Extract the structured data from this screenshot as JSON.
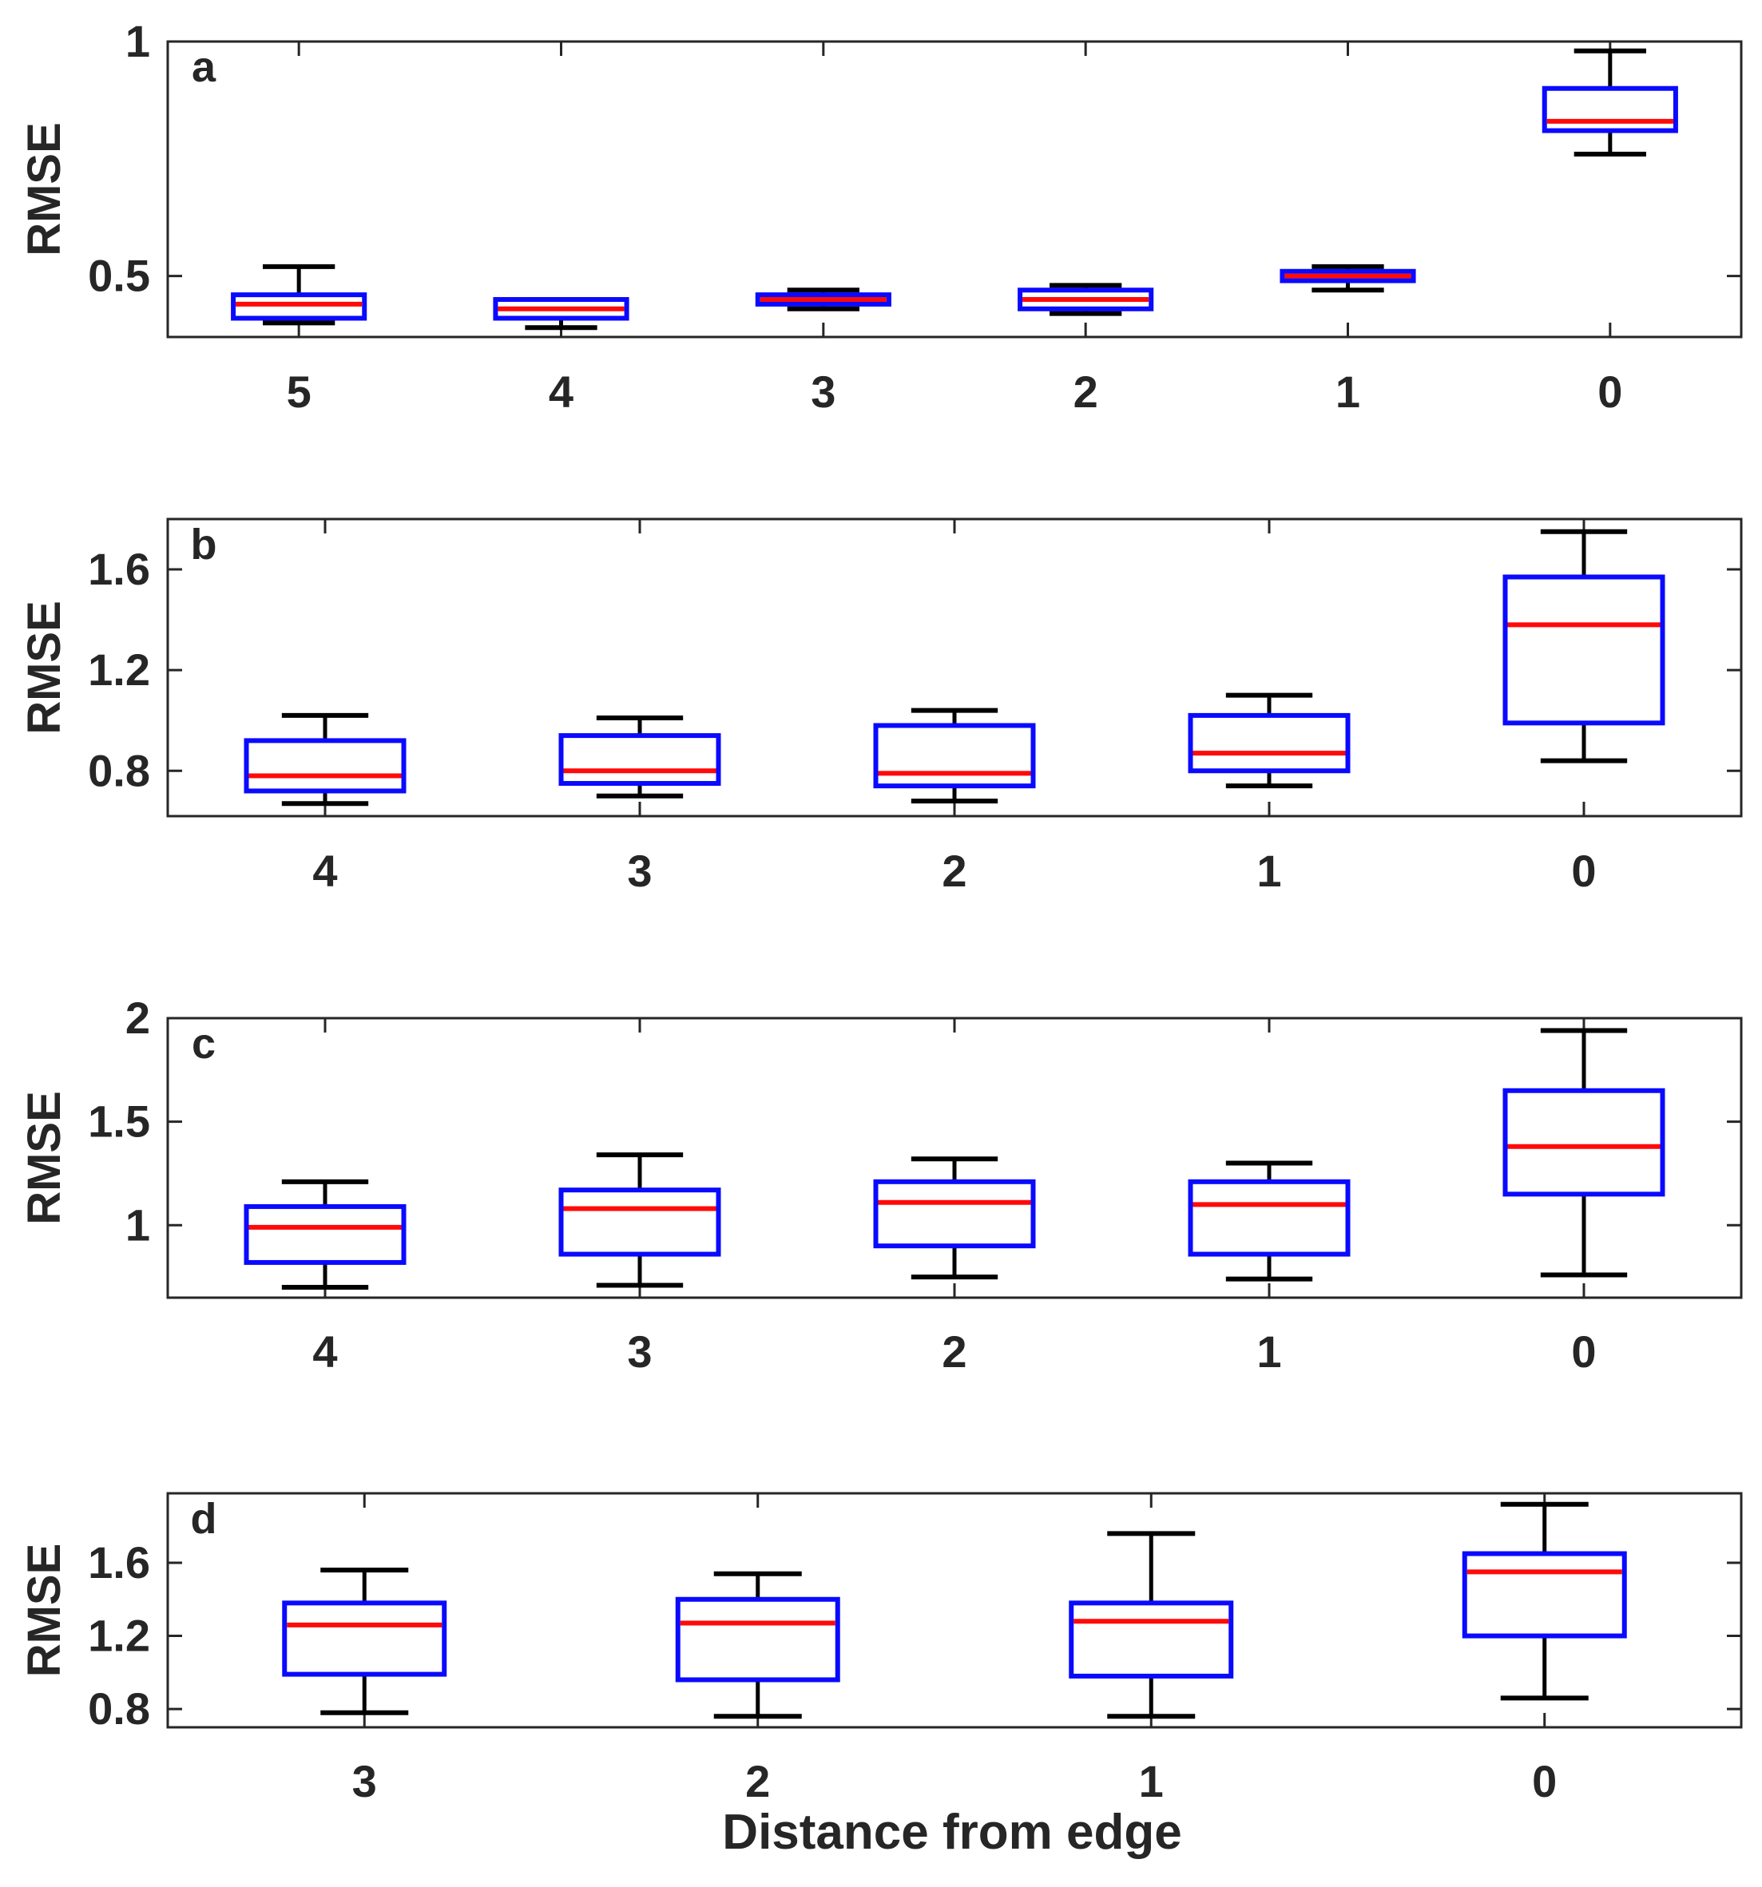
{
  "figure": {
    "xlabel": "Distance from edge",
    "colors": {
      "box": "#0a0aff",
      "median": "#ff0a0a",
      "whisker": "#000000",
      "axis": "#262626"
    }
  },
  "chart_data": [
    {
      "type": "box",
      "panel_label": "a",
      "ylabel": "RMSE",
      "ylim": [
        0.37,
        1.0
      ],
      "yticks": [
        0.5,
        1
      ],
      "ytick_labels": [
        "0.5",
        "1"
      ],
      "categories": [
        "5",
        "4",
        "3",
        "2",
        "1",
        "0"
      ],
      "boxes": [
        {
          "lower_whisker": 0.4,
          "q1": 0.41,
          "median": 0.44,
          "q3": 0.46,
          "upper_whisker": 0.52
        },
        {
          "lower_whisker": 0.39,
          "q1": 0.41,
          "median": 0.43,
          "q3": 0.45,
          "upper_whisker": 0.45
        },
        {
          "lower_whisker": 0.43,
          "q1": 0.44,
          "median": 0.45,
          "q3": 0.46,
          "upper_whisker": 0.47
        },
        {
          "lower_whisker": 0.42,
          "q1": 0.43,
          "median": 0.45,
          "q3": 0.47,
          "upper_whisker": 0.48
        },
        {
          "lower_whisker": 0.47,
          "q1": 0.49,
          "median": 0.5,
          "q3": 0.51,
          "upper_whisker": 0.52
        },
        {
          "lower_whisker": 0.76,
          "q1": 0.81,
          "median": 0.83,
          "q3": 0.9,
          "upper_whisker": 0.98
        }
      ]
    },
    {
      "type": "box",
      "panel_label": "b",
      "ylabel": "RMSE",
      "ylim": [
        0.62,
        1.8
      ],
      "yticks": [
        0.8,
        1.2,
        1.6
      ],
      "ytick_labels": [
        "0.8",
        "1.2",
        "1.6"
      ],
      "categories": [
        "4",
        "3",
        "2",
        "1",
        "0"
      ],
      "boxes": [
        {
          "lower_whisker": 0.67,
          "q1": 0.72,
          "median": 0.78,
          "q3": 0.92,
          "upper_whisker": 1.02
        },
        {
          "lower_whisker": 0.7,
          "q1": 0.75,
          "median": 0.8,
          "q3": 0.94,
          "upper_whisker": 1.01
        },
        {
          "lower_whisker": 0.68,
          "q1": 0.74,
          "median": 0.79,
          "q3": 0.98,
          "upper_whisker": 1.04
        },
        {
          "lower_whisker": 0.74,
          "q1": 0.8,
          "median": 0.87,
          "q3": 1.02,
          "upper_whisker": 1.1
        },
        {
          "lower_whisker": 0.84,
          "q1": 0.99,
          "median": 1.38,
          "q3": 1.57,
          "upper_whisker": 1.75
        }
      ]
    },
    {
      "type": "box",
      "panel_label": "c",
      "ylabel": "RMSE",
      "ylim": [
        0.65,
        2.0
      ],
      "yticks": [
        1,
        1.5,
        2
      ],
      "ytick_labels": [
        "1",
        "1.5",
        "2"
      ],
      "categories": [
        "4",
        "3",
        "2",
        "1",
        "0"
      ],
      "boxes": [
        {
          "lower_whisker": 0.7,
          "q1": 0.82,
          "median": 0.99,
          "q3": 1.09,
          "upper_whisker": 1.21
        },
        {
          "lower_whisker": 0.71,
          "q1": 0.86,
          "median": 1.08,
          "q3": 1.17,
          "upper_whisker": 1.34
        },
        {
          "lower_whisker": 0.75,
          "q1": 0.9,
          "median": 1.11,
          "q3": 1.21,
          "upper_whisker": 1.32
        },
        {
          "lower_whisker": 0.74,
          "q1": 0.86,
          "median": 1.1,
          "q3": 1.21,
          "upper_whisker": 1.3
        },
        {
          "lower_whisker": 0.76,
          "q1": 1.15,
          "median": 1.38,
          "q3": 1.65,
          "upper_whisker": 1.94
        }
      ]
    },
    {
      "type": "box",
      "panel_label": "d",
      "ylabel": "RMSE",
      "ylim": [
        0.7,
        1.98
      ],
      "yticks": [
        0.8,
        1.2,
        1.6
      ],
      "ytick_labels": [
        "0.8",
        "1.2",
        "1.6"
      ],
      "categories": [
        "3",
        "2",
        "1",
        "0"
      ],
      "boxes": [
        {
          "lower_whisker": 0.78,
          "q1": 0.99,
          "median": 1.26,
          "q3": 1.38,
          "upper_whisker": 1.56
        },
        {
          "lower_whisker": 0.76,
          "q1": 0.96,
          "median": 1.27,
          "q3": 1.4,
          "upper_whisker": 1.54
        },
        {
          "lower_whisker": 0.76,
          "q1": 0.98,
          "median": 1.28,
          "q3": 1.38,
          "upper_whisker": 1.76
        },
        {
          "lower_whisker": 0.86,
          "q1": 1.2,
          "median": 1.55,
          "q3": 1.65,
          "upper_whisker": 1.92
        }
      ]
    }
  ]
}
